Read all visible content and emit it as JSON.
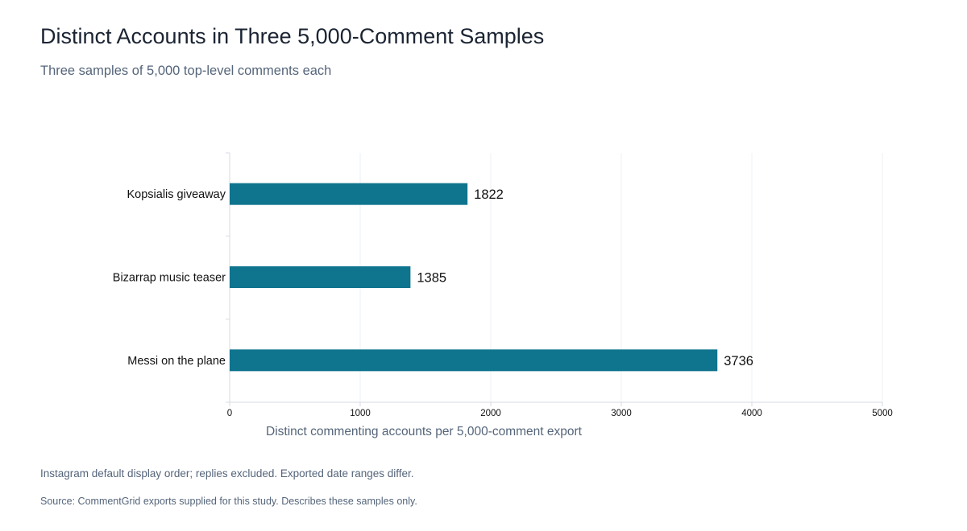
{
  "chart_data": {
    "type": "bar",
    "orientation": "horizontal",
    "title": "Distinct Accounts in Three 5,000-Comment Samples",
    "subtitle": "Three samples of 5,000 top-level comments each",
    "categories": [
      "Kopsialis giveaway",
      "Bizarrap music teaser",
      "Messi on the plane"
    ],
    "values": [
      1822,
      1385,
      3736
    ],
    "xlabel": "Distinct commenting accounts per 5,000-comment export",
    "ylabel": "",
    "xlim": [
      0,
      5000
    ],
    "xticks": [
      "0",
      "1000",
      "2000",
      "3000",
      "4000",
      "5000"
    ],
    "grid": true,
    "bar_color": "#0f748e",
    "data_labels": [
      "1822",
      "1385",
      "3736"
    ]
  },
  "footer": {
    "note": "Instagram default display order; replies excluded. Exported date ranges differ.",
    "source": "Source: CommentGrid exports supplied for this study. Describes these samples only."
  }
}
